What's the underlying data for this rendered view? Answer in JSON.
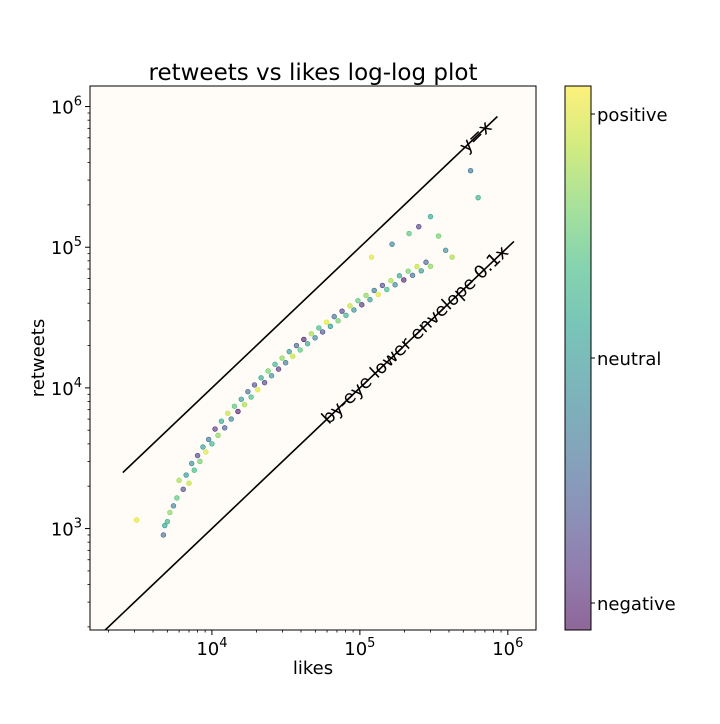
{
  "chart_data": {
    "type": "scatter",
    "title": "retweets vs likes log-log plot",
    "xlabel": "likes",
    "ylabel": "retweets",
    "xscale": "log",
    "yscale": "log",
    "xlim": [
      1500,
      1550000
    ],
    "ylim": [
      190,
      1400000
    ],
    "x_ticks": [
      {
        "value": 10000,
        "label": "10^4"
      },
      {
        "value": 100000,
        "label": "10^5"
      },
      {
        "value": 1000000,
        "label": "10^6"
      }
    ],
    "y_ticks": [
      {
        "value": 1000,
        "label": "10^3"
      },
      {
        "value": 10000,
        "label": "10^4"
      },
      {
        "value": 100000,
        "label": "10^5"
      },
      {
        "value": 1000000,
        "label": "10^6"
      }
    ],
    "grid": false,
    "plot_background": "#fffcf7",
    "reference_lines": [
      {
        "label": "y=x",
        "slope": 1,
        "x_range": [
          2500,
          850000
        ]
      },
      {
        "label": "by-eye lower envelope 0.1x",
        "slope": 0.1,
        "x_range": [
          1800,
          1100000
        ]
      }
    ],
    "colorbar": {
      "colormap": "viridis",
      "alpha": 0.6,
      "range": [
        -1,
        1
      ],
      "ticks": [
        {
          "value": -1,
          "label": "negative"
        },
        {
          "value": 0,
          "label": "neutral"
        },
        {
          "value": 1,
          "label": "positive"
        }
      ]
    },
    "series": [
      {
        "point_color_by": "sentiment",
        "points": [
          {
            "x": 3100,
            "y": 1150,
            "c": 0.9
          },
          {
            "x": 4700,
            "y": 900,
            "c": -0.4
          },
          {
            "x": 4800,
            "y": 1050,
            "c": 0.1
          },
          {
            "x": 5000,
            "y": 1120,
            "c": 0.2
          },
          {
            "x": 5200,
            "y": 1300,
            "c": 0.6
          },
          {
            "x": 5500,
            "y": 1450,
            "c": -0.2
          },
          {
            "x": 5800,
            "y": 1650,
            "c": 0.4
          },
          {
            "x": 6000,
            "y": 2200,
            "c": 0.7
          },
          {
            "x": 6400,
            "y": 1900,
            "c": -0.6
          },
          {
            "x": 6700,
            "y": 2400,
            "c": 0.0
          },
          {
            "x": 7000,
            "y": 2100,
            "c": 0.8
          },
          {
            "x": 7300,
            "y": 2900,
            "c": -0.1
          },
          {
            "x": 7600,
            "y": 2600,
            "c": 0.3
          },
          {
            "x": 8000,
            "y": 3300,
            "c": -0.7
          },
          {
            "x": 8300,
            "y": 3000,
            "c": 0.5
          },
          {
            "x": 8700,
            "y": 3800,
            "c": 0.0
          },
          {
            "x": 9100,
            "y": 3500,
            "c": 0.9
          },
          {
            "x": 9500,
            "y": 4300,
            "c": -0.3
          },
          {
            "x": 10000,
            "y": 4000,
            "c": 0.2
          },
          {
            "x": 10500,
            "y": 5100,
            "c": -0.8
          },
          {
            "x": 11000,
            "y": 4600,
            "c": 0.6
          },
          {
            "x": 11600,
            "y": 5800,
            "c": 0.1
          },
          {
            "x": 12200,
            "y": 5200,
            "c": -0.5
          },
          {
            "x": 12800,
            "y": 6600,
            "c": 0.8
          },
          {
            "x": 13500,
            "y": 6000,
            "c": -0.2
          },
          {
            "x": 14200,
            "y": 7400,
            "c": 0.4
          },
          {
            "x": 15000,
            "y": 6800,
            "c": -0.9
          },
          {
            "x": 15800,
            "y": 8300,
            "c": 0.0
          },
          {
            "x": 16600,
            "y": 7600,
            "c": 0.7
          },
          {
            "x": 17500,
            "y": 9400,
            "c": -0.4
          },
          {
            "x": 18400,
            "y": 8600,
            "c": 0.3
          },
          {
            "x": 19400,
            "y": 10500,
            "c": -0.6
          },
          {
            "x": 20400,
            "y": 9700,
            "c": 0.9
          },
          {
            "x": 21500,
            "y": 11800,
            "c": 0.1
          },
          {
            "x": 22700,
            "y": 10900,
            "c": -0.7
          },
          {
            "x": 24000,
            "y": 13200,
            "c": 0.5
          },
          {
            "x": 25300,
            "y": 12200,
            "c": -0.1
          },
          {
            "x": 26700,
            "y": 14700,
            "c": 0.2
          },
          {
            "x": 28200,
            "y": 13600,
            "c": -0.8
          },
          {
            "x": 29800,
            "y": 16300,
            "c": 0.6
          },
          {
            "x": 31500,
            "y": 15100,
            "c": -0.3
          },
          {
            "x": 33300,
            "y": 18100,
            "c": 0.0
          },
          {
            "x": 35200,
            "y": 16800,
            "c": 0.8
          },
          {
            "x": 37300,
            "y": 20000,
            "c": -0.5
          },
          {
            "x": 39500,
            "y": 18600,
            "c": 0.4
          },
          {
            "x": 41800,
            "y": 22100,
            "c": -0.9
          },
          {
            "x": 44300,
            "y": 20600,
            "c": 0.1
          },
          {
            "x": 47000,
            "y": 24300,
            "c": 0.7
          },
          {
            "x": 49800,
            "y": 22700,
            "c": -0.2
          },
          {
            "x": 52800,
            "y": 26700,
            "c": 0.3
          },
          {
            "x": 56000,
            "y": 25000,
            "c": -0.6
          },
          {
            "x": 59500,
            "y": 29300,
            "c": 0.9
          },
          {
            "x": 63200,
            "y": 27400,
            "c": 0.0
          },
          {
            "x": 67100,
            "y": 32100,
            "c": -0.4
          },
          {
            "x": 71300,
            "y": 30000,
            "c": 0.5
          },
          {
            "x": 75800,
            "y": 35100,
            "c": -0.7
          },
          {
            "x": 80600,
            "y": 32800,
            "c": 0.2
          },
          {
            "x": 85700,
            "y": 38300,
            "c": 0.8
          },
          {
            "x": 91200,
            "y": 35800,
            "c": -0.1
          },
          {
            "x": 97000,
            "y": 41700,
            "c": 0.4
          },
          {
            "x": 103000,
            "y": 39000,
            "c": -0.8
          },
          {
            "x": 110000,
            "y": 45400,
            "c": 0.6
          },
          {
            "x": 117000,
            "y": 42400,
            "c": 0.0
          },
          {
            "x": 125000,
            "y": 49300,
            "c": -0.3
          },
          {
            "x": 133000,
            "y": 46100,
            "c": 0.9
          },
          {
            "x": 142000,
            "y": 53500,
            "c": -0.6
          },
          {
            "x": 152000,
            "y": 50000,
            "c": 0.3
          },
          {
            "x": 162000,
            "y": 57900,
            "c": 0.7
          },
          {
            "x": 173000,
            "y": 54100,
            "c": -0.2
          },
          {
            "x": 185000,
            "y": 62700,
            "c": 0.1
          },
          {
            "x": 198000,
            "y": 58500,
            "c": -0.9
          },
          {
            "x": 212000,
            "y": 67600,
            "c": 0.5
          },
          {
            "x": 227000,
            "y": 63100,
            "c": -0.4
          },
          {
            "x": 243000,
            "y": 72800,
            "c": 0.8
          },
          {
            "x": 260000,
            "y": 68000,
            "c": 0.0
          },
          {
            "x": 280000,
            "y": 78200,
            "c": -0.5
          },
          {
            "x": 300000,
            "y": 73100,
            "c": 0.6
          },
          {
            "x": 120000,
            "y": 85000,
            "c": 0.9
          },
          {
            "x": 165000,
            "y": 105000,
            "c": -0.2
          },
          {
            "x": 215000,
            "y": 125000,
            "c": 0.4
          },
          {
            "x": 250000,
            "y": 140000,
            "c": -0.7
          },
          {
            "x": 300000,
            "y": 165000,
            "c": 0.1
          },
          {
            "x": 560000,
            "y": 350000,
            "c": -0.3
          },
          {
            "x": 630000,
            "y": 225000,
            "c": 0.2
          },
          {
            "x": 340000,
            "y": 120000,
            "c": 0.5
          },
          {
            "x": 380000,
            "y": 95000,
            "c": -0.1
          },
          {
            "x": 420000,
            "y": 85000,
            "c": 0.7
          }
        ]
      }
    ]
  }
}
